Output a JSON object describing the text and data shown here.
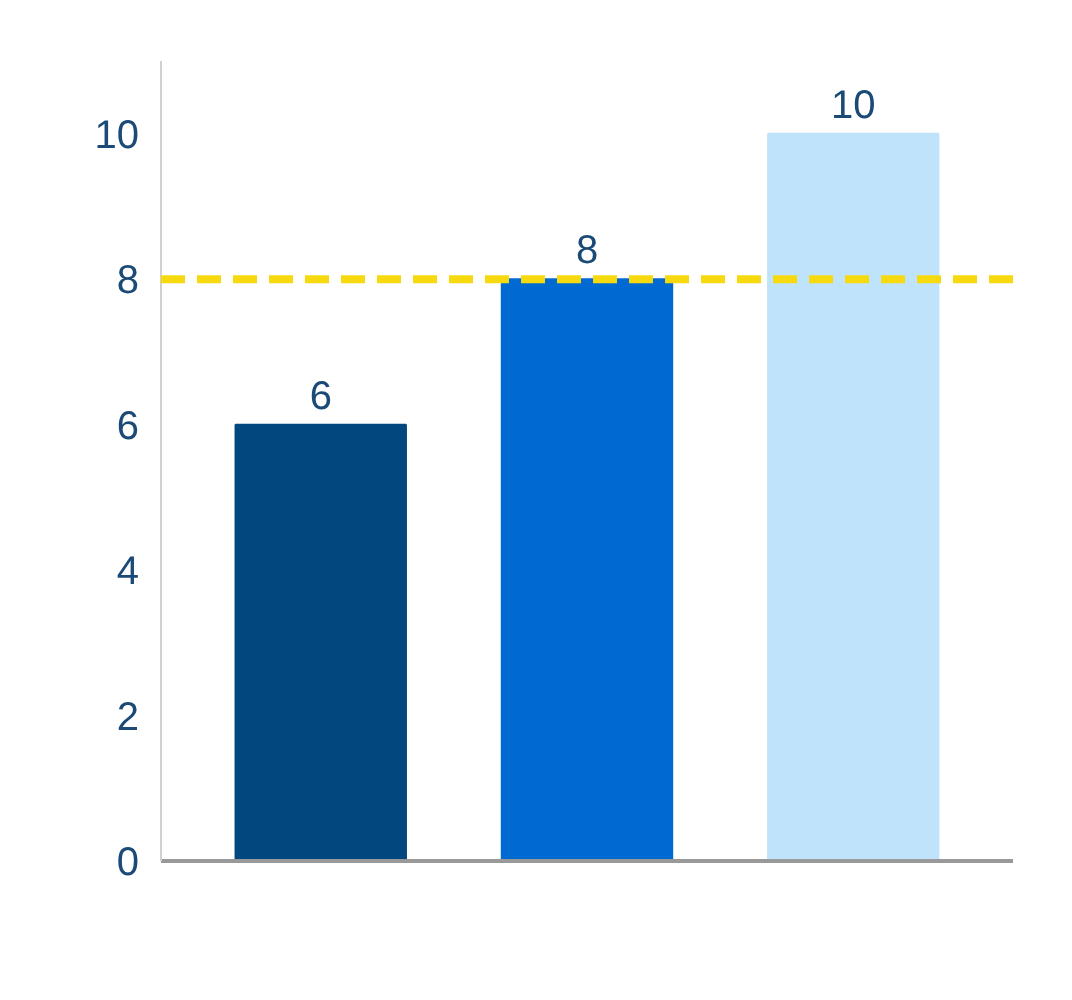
{
  "chart_data": {
    "type": "bar",
    "categories": [
      null,
      null,
      null
    ],
    "values": [
      6,
      8,
      10
    ],
    "colors": [
      "#02477e",
      "#0069d2",
      "#c0e3fc"
    ],
    "data_labels": true,
    "ylim": [
      0,
      11
    ],
    "yticks": [
      0,
      2,
      4,
      6,
      8,
      10
    ],
    "grid": false,
    "ref_lines": [
      {
        "axis": "y",
        "value": 8,
        "color": "#f7d90f",
        "line_style": "dashed"
      }
    ]
  }
}
